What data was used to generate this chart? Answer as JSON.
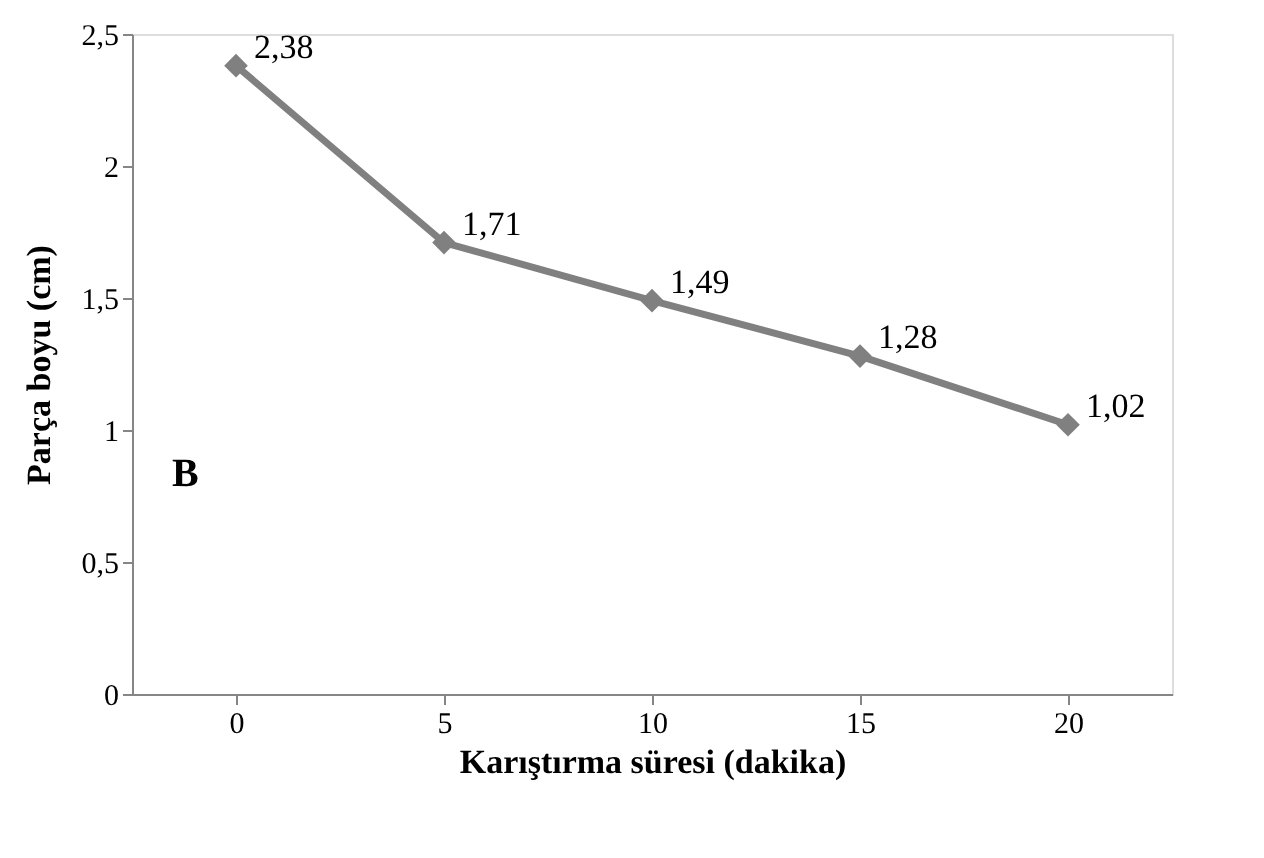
{
  "chart_data": {
    "type": "line",
    "xlabel": "Karıştırma süresi (dakika)",
    "ylabel": "Parça boyu (cm)",
    "categories": [
      "0",
      "5",
      "10",
      "15",
      "20"
    ],
    "series": [
      {
        "color": "#808080",
        "values": [
          2.38,
          1.71,
          1.49,
          1.28,
          1.02
        ],
        "value_labels": [
          "2,38",
          "1,71",
          "1,49",
          "1,28",
          "1,02"
        ]
      }
    ],
    "ylim": [
      0,
      2.5
    ],
    "yticks": [
      0,
      {
        "value": 0.5,
        "label": "0,5"
      },
      1,
      {
        "value": 1.5,
        "label": "1,5"
      },
      2,
      {
        "value": 2.5,
        "label": "2,5"
      }
    ],
    "annotations": [
      "B"
    ],
    "grid": false,
    "marker": "diamond",
    "line_style": "solid"
  }
}
